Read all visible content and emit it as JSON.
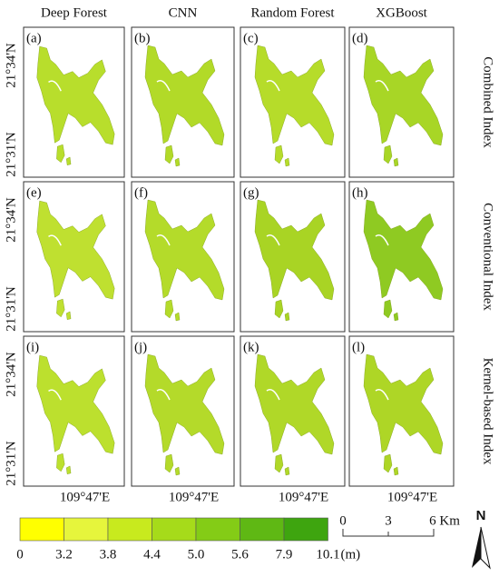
{
  "columns": [
    "Deep Forest",
    "CNN",
    "Random Forest",
    "XGBoost"
  ],
  "rows": [
    "Combined Index",
    "Conventional Index",
    "Kernel-based Index"
  ],
  "panels": [
    "(a)",
    "(b)",
    "(c)",
    "(d)",
    "(e)",
    "(f)",
    "(g)",
    "(h)",
    "(i)",
    "(j)",
    "(k)",
    "(l)"
  ],
  "latitude_labels": [
    "21°34'N",
    "21°31'N"
  ],
  "longitude_label": "109°47'E",
  "legend": {
    "ticks": [
      "0",
      "3.2",
      "3.8",
      "4.4",
      "5.0",
      "5.6",
      "7.9",
      "10.1"
    ],
    "unit": "(m)",
    "colors": [
      "#ffff00",
      "#e6f53c",
      "#c8ea1e",
      "#a6db1a",
      "#84cc16",
      "#5fb814",
      "#3ea50f"
    ]
  },
  "scale_bar": [
    "0",
    "3",
    "6 Km"
  ],
  "north": "N"
}
